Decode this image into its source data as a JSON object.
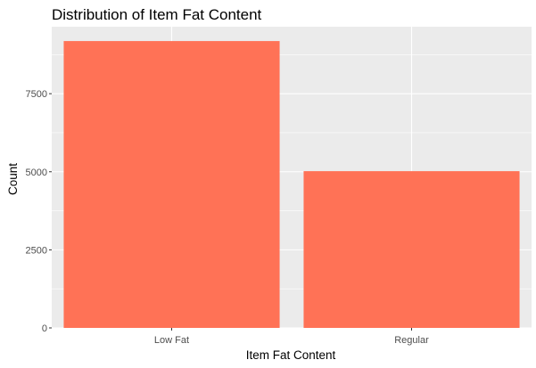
{
  "chart_data": {
    "type": "bar",
    "title": "Distribution of Item Fat Content",
    "xlabel": "Item Fat Content",
    "ylabel": "Count",
    "categories": [
      "Low Fat",
      "Regular"
    ],
    "values": [
      9185,
      5019
    ],
    "ylim": [
      0,
      9644
    ],
    "yticks": [
      0,
      2500,
      5000,
      7500
    ],
    "ytick_labels": [
      "0",
      "2500",
      "5000",
      "7500"
    ],
    "grid": true,
    "legend": "none",
    "colors": {
      "bar": "#ff7256",
      "panel": "#ebebeb",
      "grid": "#ffffff",
      "tick": "#333333"
    }
  }
}
